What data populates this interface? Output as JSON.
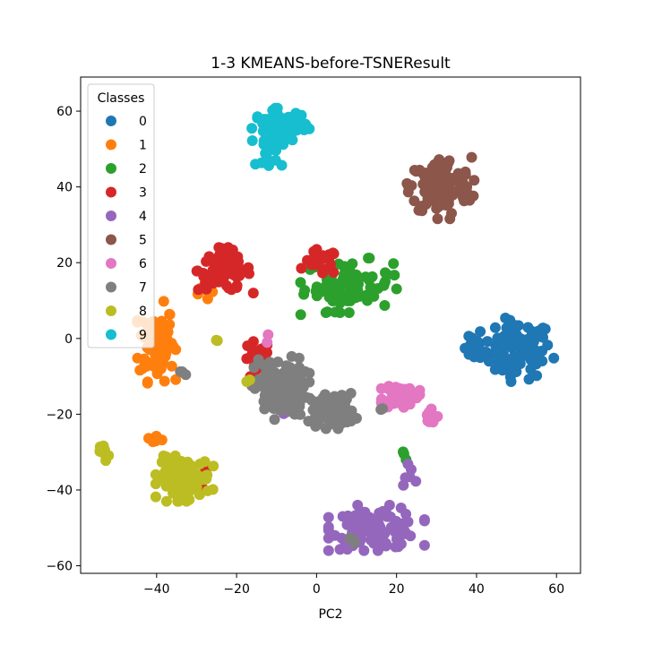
{
  "chart_data": {
    "type": "scatter",
    "title": "1-3 KMEANS-before-TSNEResult",
    "xlabel": "PC2",
    "ylabel": "",
    "xlim": [
      -59,
      66
    ],
    "ylim": [
      -62,
      69
    ],
    "xticks": [
      -40,
      -20,
      0,
      20,
      40,
      60
    ],
    "yticks": [
      -60,
      -40,
      -20,
      0,
      20,
      40,
      60
    ],
    "grid": false,
    "legend": {
      "title": "Classes",
      "placement": "top-left"
    },
    "series": [
      {
        "name": "0",
        "color": "#1f77b4",
        "clusters": [
          {
            "cx": 50,
            "cy": -3,
            "rx": 8,
            "ry": 7,
            "n": 90
          },
          {
            "cx": 40,
            "cy": -3,
            "rx": 3,
            "ry": 3,
            "n": 14
          }
        ]
      },
      {
        "name": "1",
        "color": "#ff7f0e",
        "clusters": [
          {
            "cx": -40,
            "cy": -1,
            "rx": 4,
            "ry": 9,
            "n": 95
          },
          {
            "cx": -40,
            "cy": -27,
            "rx": 2,
            "ry": 1,
            "n": 6
          },
          {
            "cx": -28,
            "cy": 13,
            "rx": 2,
            "ry": 3,
            "n": 5
          }
        ]
      },
      {
        "name": "2",
        "color": "#2ca02c",
        "clusters": [
          {
            "cx": 8,
            "cy": 14,
            "rx": 10,
            "ry": 6,
            "n": 85
          },
          {
            "cx": 22,
            "cy": -31,
            "rx": 1,
            "ry": 1,
            "n": 3
          },
          {
            "cx": -4,
            "cy": 6,
            "rx": 1,
            "ry": 1,
            "n": 1
          }
        ]
      },
      {
        "name": "3",
        "color": "#d62728",
        "clusters": [
          {
            "cx": -23,
            "cy": 18,
            "rx": 6,
            "ry": 5,
            "n": 85
          },
          {
            "cx": -15,
            "cy": -6,
            "rx": 3,
            "ry": 5,
            "n": 28
          },
          {
            "cx": 1,
            "cy": 20,
            "rx": 4,
            "ry": 3,
            "n": 22
          },
          {
            "cx": -28,
            "cy": -38,
            "rx": 1,
            "ry": 3,
            "n": 6
          }
        ]
      },
      {
        "name": "4",
        "color": "#9467bd",
        "clusters": [
          {
            "cx": 15,
            "cy": -50,
            "rx": 10,
            "ry": 5,
            "n": 110
          },
          {
            "cx": 23,
            "cy": -36,
            "rx": 2,
            "ry": 3,
            "n": 6
          },
          {
            "cx": -8,
            "cy": -18,
            "rx": 2,
            "ry": 2,
            "n": 5
          }
        ]
      },
      {
        "name": "5",
        "color": "#8c564b",
        "clusters": [
          {
            "cx": 31,
            "cy": 40,
            "rx": 7,
            "ry": 7,
            "n": 130
          }
        ]
      },
      {
        "name": "6",
        "color": "#e377c2",
        "clusters": [
          {
            "cx": 21,
            "cy": -15,
            "rx": 4,
            "ry": 3,
            "n": 55
          },
          {
            "cx": 28,
            "cy": -21,
            "rx": 2,
            "ry": 2,
            "n": 14
          },
          {
            "cx": -13,
            "cy": 0,
            "rx": 1,
            "ry": 1,
            "n": 2
          }
        ]
      },
      {
        "name": "7",
        "color": "#7f7f7f",
        "clusters": [
          {
            "cx": -9,
            "cy": -13,
            "rx": 6,
            "ry": 7,
            "n": 110
          },
          {
            "cx": 4,
            "cy": -19,
            "rx": 5,
            "ry": 4,
            "n": 85
          },
          {
            "cx": -33,
            "cy": -9,
            "rx": 1,
            "ry": 1,
            "n": 3
          },
          {
            "cx": 16,
            "cy": -19,
            "rx": 1,
            "ry": 1,
            "n": 2
          },
          {
            "cx": 9,
            "cy": -53,
            "rx": 2,
            "ry": 1,
            "n": 4
          }
        ]
      },
      {
        "name": "8",
        "color": "#bcbd22",
        "clusters": [
          {
            "cx": -33,
            "cy": -37,
            "rx": 6,
            "ry": 5,
            "n": 110
          },
          {
            "cx": -53,
            "cy": -30,
            "rx": 1,
            "ry": 2,
            "n": 8
          },
          {
            "cx": -17,
            "cy": -11,
            "rx": 1,
            "ry": 1,
            "n": 2
          },
          {
            "cx": -26,
            "cy": 0,
            "rx": 1,
            "ry": 1,
            "n": 2
          }
        ]
      },
      {
        "name": "9",
        "color": "#17becf",
        "clusters": [
          {
            "cx": -9,
            "cy": 56,
            "rx": 6,
            "ry": 4,
            "n": 85
          },
          {
            "cx": -12,
            "cy": 48,
            "rx": 3,
            "ry": 3,
            "n": 12
          }
        ]
      }
    ]
  }
}
